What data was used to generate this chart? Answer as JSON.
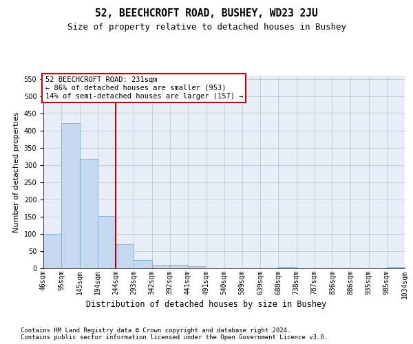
{
  "title": "52, BEECHCROFT ROAD, BUSHEY, WD23 2JU",
  "subtitle": "Size of property relative to detached houses in Bushey",
  "xlabel": "Distribution of detached houses by size in Bushey",
  "ylabel": "Number of detached properties",
  "bar_values": [
    100,
    422,
    318,
    153,
    70,
    25,
    11,
    11,
    6,
    0,
    0,
    0,
    0,
    4,
    0,
    0,
    0,
    0,
    0,
    4
  ],
  "bin_labels": [
    "46sqm",
    "95sqm",
    "145sqm",
    "194sqm",
    "244sqm",
    "293sqm",
    "342sqm",
    "392sqm",
    "441sqm",
    "491sqm",
    "540sqm",
    "589sqm",
    "639sqm",
    "688sqm",
    "738sqm",
    "787sqm",
    "836sqm",
    "886sqm",
    "935sqm",
    "985sqm",
    "1034sqm"
  ],
  "bar_color": "#c5d8f0",
  "bar_edge_color": "#7bafd4",
  "grid_color": "#c0c8d8",
  "bg_color": "#e8eef8",
  "annotation_box_color": "#cc0000",
  "vline_color": "#cc0000",
  "vline_x": 4,
  "annotation_text": "52 BEECHCROFT ROAD: 231sqm\n← 86% of detached houses are smaller (953)\n14% of semi-detached houses are larger (157) →",
  "annotation_fontsize": 7.5,
  "ylim": [
    0,
    560
  ],
  "yticks": [
    0,
    50,
    100,
    150,
    200,
    250,
    300,
    350,
    400,
    450,
    500,
    550
  ],
  "footer_text": "Contains HM Land Registry data © Crown copyright and database right 2024.\nContains public sector information licensed under the Open Government Licence v3.0.",
  "title_fontsize": 10.5,
  "subtitle_fontsize": 9,
  "xlabel_fontsize": 8.5,
  "ylabel_fontsize": 8,
  "footer_fontsize": 6.5,
  "tick_fontsize": 7
}
